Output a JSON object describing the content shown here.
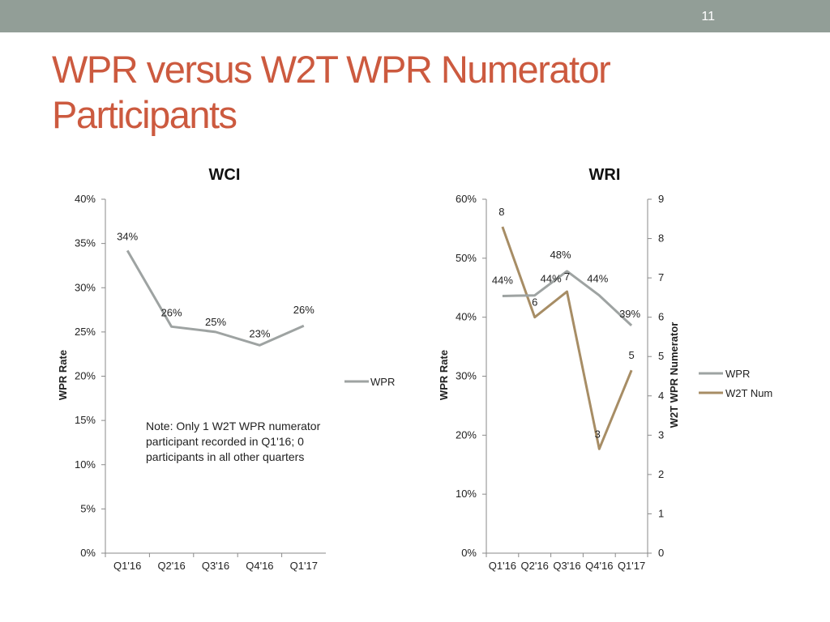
{
  "slide": {
    "number": "11",
    "title_line1": "WPR versus W2T WPR Numerator",
    "title_line2": "Participants"
  },
  "colors": {
    "topbar": "#929e97",
    "title": "#cc5a3f",
    "wpr_series": "#9ea3a2",
    "w2t_series": "#a78d65"
  },
  "chart_data": [
    {
      "type": "line",
      "title": "WCI",
      "categories": [
        "Q1'16",
        "Q2'16",
        "Q3'16",
        "Q4'16",
        "Q1'17"
      ],
      "y_ticks": [
        "0%",
        "5%",
        "10%",
        "15%",
        "20%",
        "25%",
        "30%",
        "35%",
        "40%"
      ],
      "ylim": [
        0,
        40
      ],
      "ylabel": "WPR Rate",
      "xlabel": "",
      "grid": false,
      "legend": "right",
      "series": [
        {
          "name": "WPR",
          "values": [
            34.2,
            25.6,
            25.0,
            23.5,
            25.7
          ],
          "labels": [
            "34%",
            "26%",
            "25%",
            "23%",
            "26%"
          ]
        }
      ],
      "note": "Note: Only 1 W2T WPR numerator participant recorded in Q1'16; 0 participants in all other quarters"
    },
    {
      "type": "line",
      "title": "WRI",
      "categories": [
        "Q1'16",
        "Q2'16",
        "Q3'16",
        "Q4'16",
        "Q1'17"
      ],
      "y_ticks": [
        "0%",
        "10%",
        "20%",
        "30%",
        "40%",
        "50%",
        "60%"
      ],
      "ylim": [
        0,
        60
      ],
      "ylabel": "WPR Rate",
      "y2_ticks": [
        "0",
        "1",
        "2",
        "3",
        "4",
        "5",
        "6",
        "7",
        "8",
        "9"
      ],
      "y2lim": [
        0,
        9
      ],
      "y2label": "W2T WPR Numerator",
      "xlabel": "",
      "grid": false,
      "legend": "right",
      "series": [
        {
          "name": "WPR",
          "axis": "left",
          "values": [
            43.6,
            43.7,
            47.8,
            43.7,
            38.6
          ],
          "labels": [
            "44%",
            "44%",
            "48%",
            "44%",
            "39%"
          ]
        },
        {
          "name": "W2T Num",
          "axis": "right",
          "values": [
            8.3,
            6.0,
            6.65,
            2.65,
            4.65
          ],
          "labels": [
            "8",
            "6",
            "7",
            "3",
            "5"
          ]
        }
      ]
    }
  ]
}
